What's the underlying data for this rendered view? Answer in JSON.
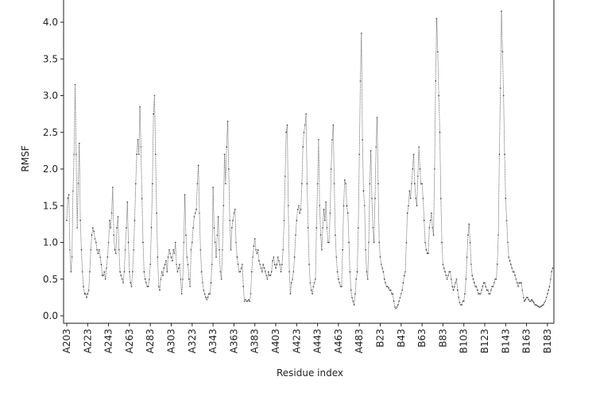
{
  "chart_data": {
    "type": "line",
    "xlabel": "Residue index",
    "ylabel": "RMSF",
    "categories": [
      "A203",
      null,
      null,
      null,
      null,
      null,
      null,
      null,
      null,
      null,
      null,
      null,
      null,
      null,
      null,
      null,
      null,
      null,
      null,
      null,
      "A223",
      null,
      null,
      null,
      null,
      null,
      null,
      null,
      null,
      null,
      null,
      null,
      null,
      null,
      null,
      null,
      null,
      null,
      null,
      null,
      "A243",
      null,
      null,
      null,
      null,
      null,
      null,
      null,
      null,
      null,
      null,
      null,
      null,
      null,
      null,
      null,
      null,
      null,
      null,
      null,
      "A263",
      null,
      null,
      null,
      null,
      null,
      null,
      null,
      null,
      null,
      null,
      null,
      null,
      null,
      null,
      null,
      null,
      null,
      null,
      null,
      "A283",
      null,
      null,
      null,
      null,
      null,
      null,
      null,
      null,
      null,
      null,
      null,
      null,
      null,
      null,
      null,
      null,
      null,
      null,
      null,
      "A303",
      null,
      null,
      null,
      null,
      null,
      null,
      null,
      null,
      null,
      null,
      null,
      null,
      null,
      null,
      null,
      null,
      null,
      null,
      null,
      "A323",
      null,
      null,
      null,
      null,
      null,
      null,
      null,
      null,
      null,
      null,
      null,
      null,
      null,
      null,
      null,
      null,
      null,
      null,
      null,
      "A343",
      null,
      null,
      null,
      null,
      null,
      null,
      null,
      null,
      null,
      null,
      null,
      null,
      null,
      null,
      null,
      null,
      null,
      null,
      null,
      "A363",
      null,
      null,
      null,
      null,
      null,
      null,
      null,
      null,
      null,
      null,
      null,
      null,
      null,
      null,
      null,
      null,
      null,
      null,
      null,
      "A383",
      null,
      null,
      null,
      null,
      null,
      null,
      null,
      null,
      null,
      null,
      null,
      null,
      null,
      null,
      null,
      null,
      null,
      null,
      null,
      "A403",
      null,
      null,
      null,
      null,
      null,
      null,
      null,
      null,
      null,
      null,
      null,
      null,
      null,
      null,
      null,
      null,
      null,
      null,
      null,
      "A423",
      null,
      null,
      null,
      null,
      null,
      null,
      null,
      null,
      null,
      null,
      null,
      null,
      null,
      null,
      null,
      null,
      null,
      null,
      null,
      "A443",
      null,
      null,
      null,
      null,
      null,
      null,
      null,
      null,
      null,
      null,
      null,
      null,
      null,
      null,
      null,
      null,
      null,
      null,
      null,
      "A463",
      null,
      null,
      null,
      null,
      null,
      null,
      null,
      null,
      null,
      null,
      null,
      null,
      null,
      null,
      null,
      null,
      null,
      null,
      null,
      "A483",
      null,
      null,
      null,
      null,
      null,
      null,
      null,
      null,
      null,
      null,
      null,
      null,
      null,
      null,
      null,
      null,
      null,
      null,
      null,
      "B23",
      null,
      null,
      null,
      null,
      null,
      null,
      null,
      null,
      null,
      null,
      null,
      null,
      null,
      null,
      null,
      null,
      null,
      null,
      null,
      "B43",
      null,
      null,
      null,
      null,
      null,
      null,
      null,
      null,
      null,
      null,
      null,
      null,
      null,
      null,
      null,
      null,
      null,
      null,
      null,
      "B63",
      null,
      null,
      null,
      null,
      null,
      null,
      null,
      null,
      null,
      null,
      null,
      null,
      null,
      null,
      null,
      null,
      null,
      null,
      null,
      "B83",
      null,
      null,
      null,
      null,
      null,
      null,
      null,
      null,
      null,
      null,
      null,
      null,
      null,
      null,
      null,
      null,
      null,
      null,
      null,
      "B103",
      null,
      null,
      null,
      null,
      null,
      null,
      null,
      null,
      null,
      null,
      null,
      null,
      null,
      null,
      null,
      null,
      null,
      null,
      null,
      "B123",
      null,
      null,
      null,
      null,
      null,
      null,
      null,
      null,
      null,
      null,
      null,
      null,
      null,
      null,
      null,
      null,
      null,
      null,
      null,
      "B143",
      null,
      null,
      null,
      null,
      null,
      null,
      null,
      null,
      null,
      null,
      null,
      null,
      null,
      null,
      null,
      null,
      null,
      null,
      null,
      "B163",
      null,
      null,
      null,
      null,
      null,
      null,
      null,
      null,
      null,
      null,
      null,
      null,
      null,
      null,
      null,
      null,
      null,
      null,
      null,
      "B183",
      null,
      null,
      null,
      null,
      null
    ],
    "values": [
      1.3,
      1.6,
      1.65,
      0.9,
      0.6,
      0.8,
      1.7,
      2.2,
      3.15,
      2.2,
      1.2,
      1.8,
      2.35,
      1.3,
      0.9,
      0.6,
      0.4,
      0.3,
      0.3,
      0.25,
      0.3,
      0.35,
      0.6,
      0.9,
      1.1,
      1.2,
      1.15,
      1.05,
      1.0,
      0.9,
      0.85,
      0.9,
      0.8,
      0.7,
      0.55,
      0.55,
      0.6,
      0.5,
      0.65,
      0.8,
      1.0,
      1.3,
      1.2,
      1.4,
      1.75,
      1.1,
      0.9,
      0.85,
      1.2,
      1.35,
      0.9,
      0.6,
      0.55,
      0.5,
      0.45,
      0.6,
      0.9,
      1.2,
      1.55,
      1.0,
      0.6,
      0.45,
      0.4,
      0.6,
      0.9,
      1.3,
      1.8,
      2.2,
      2.4,
      2.2,
      2.85,
      2.3,
      1.6,
      1.0,
      0.6,
      0.5,
      0.45,
      0.4,
      0.4,
      0.5,
      0.7,
      1.2,
      1.8,
      2.75,
      3.0,
      2.2,
      1.4,
      0.8,
      0.4,
      0.35,
      0.5,
      0.6,
      0.55,
      0.65,
      0.7,
      0.75,
      0.6,
      0.8,
      0.9,
      0.85,
      0.8,
      0.75,
      0.9,
      0.85,
      1.0,
      0.7,
      0.6,
      0.65,
      0.7,
      0.5,
      0.3,
      0.5,
      1.0,
      1.65,
      1.1,
      0.8,
      0.7,
      0.5,
      0.4,
      0.9,
      1.0,
      1.2,
      1.35,
      1.4,
      1.45,
      1.8,
      2.05,
      1.4,
      0.9,
      0.6,
      0.45,
      0.35,
      0.3,
      0.25,
      0.22,
      0.25,
      0.3,
      0.3,
      0.45,
      0.7,
      1.75,
      1.2,
      1.0,
      0.8,
      1.1,
      1.35,
      0.9,
      0.6,
      0.5,
      0.9,
      1.5,
      2.2,
      1.8,
      2.3,
      2.65,
      2.0,
      1.3,
      0.9,
      1.2,
      1.3,
      1.4,
      1.45,
      1.0,
      0.8,
      0.7,
      0.6,
      0.6,
      0.65,
      0.7,
      0.4,
      0.2,
      0.22,
      0.2,
      0.2,
      0.22,
      0.2,
      0.3,
      0.6,
      0.8,
      0.95,
      1.05,
      0.9,
      0.85,
      0.9,
      0.75,
      0.7,
      0.65,
      0.6,
      0.7,
      0.65,
      0.6,
      0.55,
      0.5,
      0.6,
      0.55,
      0.55,
      0.6,
      0.75,
      0.8,
      0.7,
      0.65,
      0.7,
      0.8,
      0.75,
      0.7,
      0.6,
      0.7,
      0.9,
      1.3,
      1.9,
      2.5,
      2.6,
      1.5,
      0.6,
      0.3,
      0.45,
      0.5,
      0.6,
      0.8,
      1.1,
      1.3,
      1.45,
      1.5,
      1.4,
      1.45,
      1.8,
      2.3,
      2.5,
      2.6,
      2.75,
      1.8,
      1.2,
      0.7,
      0.45,
      0.35,
      0.3,
      0.4,
      0.45,
      0.5,
      1.2,
      1.8,
      2.4,
      1.5,
      1.1,
      0.9,
      1.2,
      1.45,
      1.3,
      1.55,
      1.2,
      1.0,
      1.0,
      1.4,
      2.0,
      2.4,
      2.6,
      1.8,
      1.1,
      0.8,
      0.6,
      0.5,
      0.45,
      0.4,
      0.4,
      0.9,
      1.5,
      1.85,
      1.8,
      1.5,
      1.4,
      1.0,
      0.6,
      0.35,
      0.25,
      0.2,
      0.15,
      0.3,
      0.5,
      0.6,
      1.2,
      2.2,
      3.2,
      3.85,
      2.4,
      1.7,
      1.5,
      0.9,
      0.6,
      0.5,
      1.0,
      1.8,
      2.25,
      1.6,
      1.2,
      1.0,
      1.6,
      2.3,
      2.7,
      1.8,
      1.0,
      0.8,
      0.7,
      0.65,
      0.6,
      0.5,
      0.45,
      0.4,
      0.4,
      0.38,
      0.35,
      0.35,
      0.3,
      0.3,
      0.2,
      0.12,
      0.1,
      0.12,
      0.15,
      0.2,
      0.25,
      0.3,
      0.35,
      0.45,
      0.55,
      0.6,
      1.0,
      1.4,
      1.5,
      1.7,
      1.6,
      1.8,
      2.0,
      2.2,
      1.8,
      1.6,
      1.5,
      1.9,
      2.3,
      2.0,
      1.8,
      1.8,
      1.6,
      1.3,
      1.0,
      0.9,
      0.85,
      0.85,
      1.2,
      1.3,
      1.4,
      1.2,
      1.1,
      2.0,
      3.2,
      4.05,
      3.6,
      3.0,
      2.5,
      1.6,
      1.0,
      0.7,
      0.65,
      0.6,
      0.55,
      0.5,
      0.55,
      0.6,
      0.6,
      0.5,
      0.4,
      0.35,
      0.4,
      0.45,
      0.5,
      0.35,
      0.25,
      0.18,
      0.15,
      0.15,
      0.2,
      0.2,
      0.3,
      0.5,
      0.8,
      1.1,
      1.25,
      1.0,
      0.7,
      0.55,
      0.5,
      0.45,
      0.4,
      0.4,
      0.35,
      0.3,
      0.3,
      0.3,
      0.35,
      0.4,
      0.45,
      0.45,
      0.4,
      0.35,
      0.35,
      0.3,
      0.3,
      0.35,
      0.4,
      0.4,
      0.45,
      0.5,
      0.5,
      0.7,
      1.1,
      2.2,
      3.1,
      4.15,
      3.6,
      3.0,
      2.2,
      1.6,
      1.3,
      1.0,
      0.8,
      0.75,
      0.7,
      0.65,
      0.6,
      0.6,
      0.55,
      0.5,
      0.45,
      0.4,
      0.45,
      0.45,
      0.45,
      0.35,
      0.25,
      0.2,
      0.22,
      0.25,
      0.25,
      0.22,
      0.2,
      0.2,
      0.22,
      0.2,
      0.18,
      0.15,
      0.15,
      0.14,
      0.13,
      0.12,
      0.12,
      0.13,
      0.14,
      0.15,
      0.18,
      0.2,
      0.25,
      0.3,
      0.35,
      0.4,
      0.5,
      0.6,
      0.65
    ],
    "color": "#555555",
    "ylim": [
      -0.1,
      4.4
    ],
    "yticks": [
      {
        "value": 0,
        "label": "0.0"
      },
      {
        "value": 0.5,
        "label": "0.5"
      },
      {
        "value": 1,
        "label": "1.0"
      },
      {
        "value": 1.5,
        "label": "1.5"
      },
      {
        "value": 2,
        "label": "2.0"
      },
      {
        "value": 2.5,
        "label": "2.5"
      },
      {
        "value": 3,
        "label": "3.0"
      },
      {
        "value": 3.5,
        "label": "3.5"
      },
      {
        "value": 4,
        "label": "4.0"
      }
    ]
  }
}
